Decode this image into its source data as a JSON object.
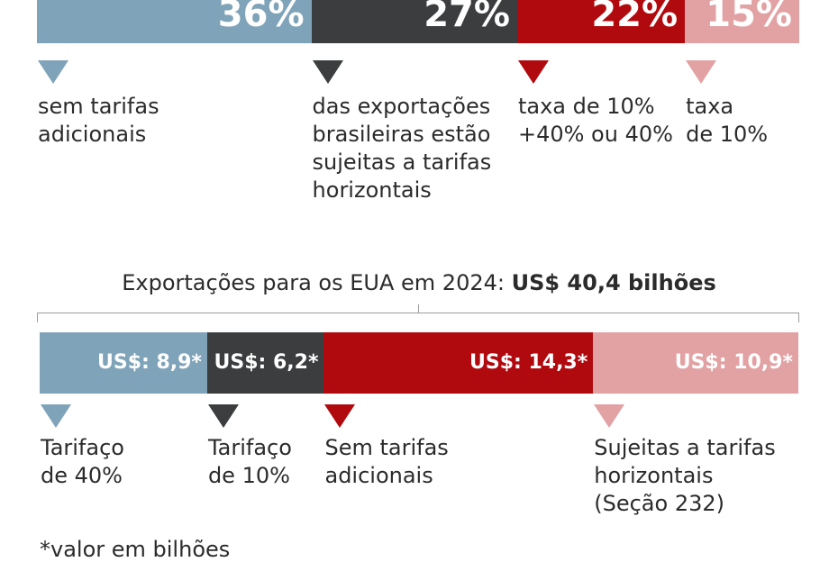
{
  "chart_data": [
    {
      "type": "bar",
      "categories": [
        "sem tarifas adicionais",
        "das exportações brasileiras estão sujeitas a tarifas horizontais",
        "taxa de 10% +40% ou 40%",
        "taxa de 10%"
      ],
      "values": [
        36,
        27,
        22,
        15
      ],
      "value_labels": [
        "36%",
        "27%",
        "22%",
        "15%"
      ],
      "labels": [
        "sem tarifas\nadicionais",
        "das exportações\nbrasileiras estão\nsujeitas a tarifas\nhorizontais",
        "taxa de 10%\n+40% ou 40%",
        "taxa\nde 10%"
      ],
      "colors": [
        "#7fa3b8",
        "#3b3d3f",
        "#b00a0f",
        "#e2a1a3"
      ]
    },
    {
      "type": "bar",
      "title_prefix": "Exportações para os EUA em 2024: ",
      "title_bold": "US$ 40,4 bilhões",
      "categories": [
        "Tarifaço de 40%",
        "Tarifaço de 10%",
        "Sem tarifas adicionais",
        "Sujeitas a tarifas horizontais (Seção 232)"
      ],
      "values": [
        8.9,
        6.2,
        14.3,
        10.9
      ],
      "value_labels": [
        "US$: 8,9*",
        "US$: 6,2*",
        "US$: 14,3*",
        "US$: 10,9*"
      ],
      "labels": [
        "Tarifaço\nde 40%",
        "Tarifaço\nde 10%",
        "Sem tarifas\nadicionais",
        "Sujeitas a tarifas\nhorizontais\n(Seção 232)"
      ],
      "colors": [
        "#7fa3b8",
        "#3b3d3f",
        "#b00a0f",
        "#e2a1a3"
      ],
      "footnote": "*valor em bilhões"
    }
  ]
}
